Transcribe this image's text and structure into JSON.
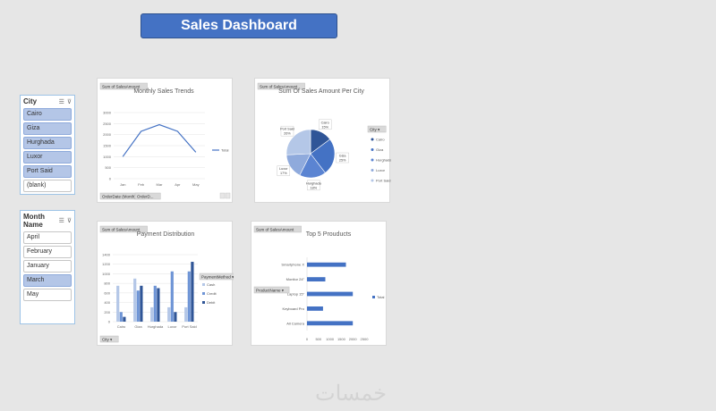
{
  "dashboard": {
    "title": "Sales Dashboard"
  },
  "city_slicer": {
    "title": "City",
    "items": [
      {
        "label": "Cairo",
        "selected": true
      },
      {
        "label": "Giza",
        "selected": true
      },
      {
        "label": "Hurghada",
        "selected": true
      },
      {
        "label": "Luxor",
        "selected": true
      },
      {
        "label": "Port Said",
        "selected": true
      },
      {
        "label": "(blank)",
        "selected": false
      }
    ]
  },
  "month_slicer": {
    "title": "Month Name",
    "items": [
      {
        "label": "April",
        "selected": false
      },
      {
        "label": "February",
        "selected": false
      },
      {
        "label": "January",
        "selected": false
      },
      {
        "label": "March",
        "selected": true
      },
      {
        "label": "May",
        "selected": false
      }
    ]
  },
  "watermark": "خمسات",
  "colors": {
    "accent": "#4472c4",
    "light": "#8faadc",
    "pale": "#b4c7e7",
    "dark": "#2f5597"
  },
  "chart_data": [
    {
      "id": "monthly",
      "type": "line",
      "title": "Monthly Sales Trends",
      "field_tag": "Sum of SalesAmount",
      "filter_buttons": [
        "OrderDate (Month)",
        "OrderD..."
      ],
      "categories": [
        "Jan",
        "Feb",
        "Mar",
        "Apr",
        "May"
      ],
      "series": [
        {
          "name": "Total",
          "values": [
            1000,
            2150,
            2450,
            2150,
            1200
          ]
        }
      ],
      "yticks": [
        0,
        500,
        1000,
        1500,
        2000,
        2500,
        3000
      ],
      "ylim": [
        0,
        3000
      ],
      "legend_position": "right",
      "grid": true
    },
    {
      "id": "pie",
      "type": "pie",
      "title": "Sum Of Sales Amount Per City",
      "field_tag": "Sum of SalesAmount",
      "legend_header": "City",
      "slices": [
        {
          "label": "Cairo",
          "value": 15,
          "display": "15%"
        },
        {
          "label": "Giza",
          "value": 25,
          "display": "25%"
        },
        {
          "label": "Hurghada",
          "value": 18,
          "display": "18%"
        },
        {
          "label": "Luxor",
          "value": 17,
          "display": "17%"
        },
        {
          "label": "Port Said",
          "value": 26,
          "display": "26%"
        }
      ],
      "colors": [
        "#2f5597",
        "#4472c4",
        "#5b84d2",
        "#8faadc",
        "#b4c7e7"
      ]
    },
    {
      "id": "payment",
      "type": "bar",
      "title": "Payment Distribution",
      "field_tag": "Sum of SalesAmount",
      "axis_button": "City",
      "legend_header": "PaymentMethod",
      "categories": [
        "Cairo",
        "Giza",
        "Hurghada",
        "Luxor",
        "Port Said"
      ],
      "series": [
        {
          "name": "Cash",
          "values": [
            750,
            900,
            300,
            300,
            300
          ],
          "color": "#b4c7e7"
        },
        {
          "name": "Credit",
          "values": [
            200,
            650,
            750,
            1050,
            1050
          ],
          "color": "#6f95d6"
        },
        {
          "name": "Debit",
          "values": [
            100,
            750,
            700,
            200,
            1250
          ],
          "color": "#2f5597"
        }
      ],
      "yticks": [
        0,
        200,
        400,
        600,
        800,
        1000,
        1200,
        1400
      ],
      "ylim": [
        0,
        1400
      ],
      "grid": true
    },
    {
      "id": "top5",
      "type": "bar",
      "orientation": "horizontal",
      "title": "Top 5 Prouducts",
      "field_tag": "Sum of SalesAmount",
      "axis_button": "ProductName",
      "categories": [
        "Smartphone X",
        "Monitor 24\"",
        "Laptop 15\"",
        "Keyboard Pro",
        "All Camera"
      ],
      "series": [
        {
          "name": "Total",
          "values": [
            1700,
            800,
            2000,
            700,
            2000
          ]
        }
      ],
      "xticks": [
        0,
        500,
        1000,
        1500,
        2000,
        2500
      ],
      "xlim": [
        0,
        2500
      ],
      "legend_position": "right"
    }
  ]
}
